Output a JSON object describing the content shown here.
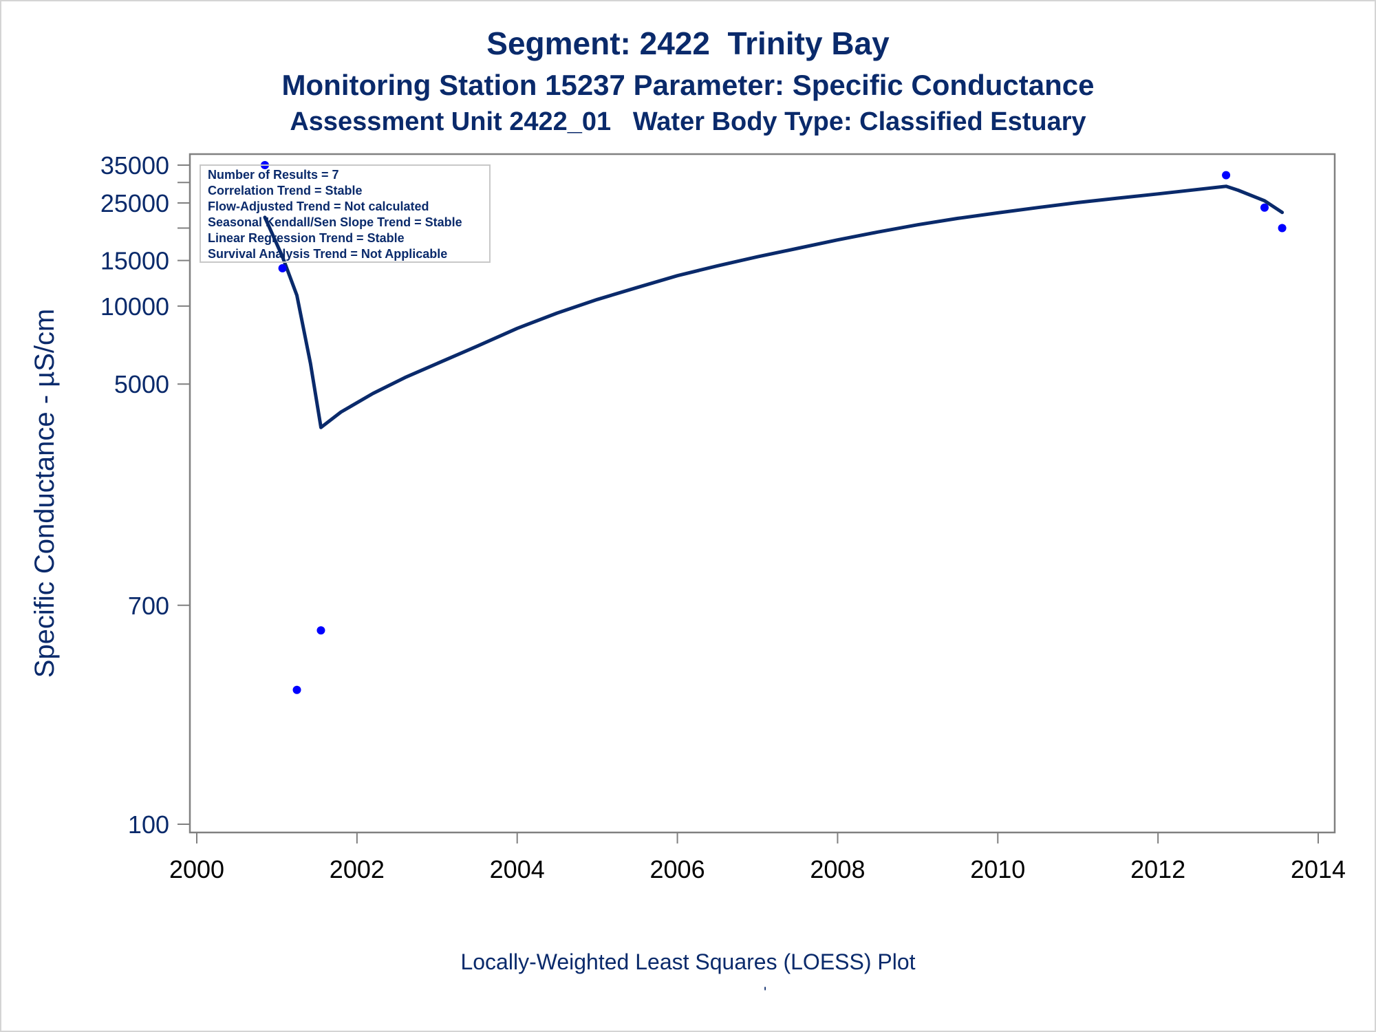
{
  "chart_data": {
    "type": "scatter",
    "title": "Segment: 2422  Trinity Bay",
    "subtitle": "Monitoring Station 15237 Parameter: Specific Conductance",
    "subtitle2": "Assessment Unit 2422_01   Water Body Type: Classified Estuary",
    "xlabel": "",
    "ylabel": "Specific Conductance -  µS/cm",
    "footnote": "Locally-Weighted Least Squares (LOESS) Plot",
    "footnote_mark": "'",
    "y_scale": "log",
    "xlim": [
      1999.95,
      2014.3
    ],
    "ylim": [
      100,
      35000
    ],
    "x_ticks": [
      2000,
      2002,
      2004,
      2006,
      2008,
      2010,
      2012,
      2014
    ],
    "x_tick_labels": [
      "2000",
      "2002",
      "2004",
      "2006",
      "2008",
      "2010",
      "2012",
      "2014"
    ],
    "y_ticks_labeled": [
      100,
      700,
      5000,
      10000,
      15000,
      25000,
      35000
    ],
    "y_tick_labels": [
      "100",
      "700",
      "5000",
      "10000",
      "15000",
      "25000",
      "35000"
    ],
    "y_ticks_minor": [
      20000,
      30000
    ],
    "legend_placement": "top-left",
    "annotations": [
      "Number of Results = 7",
      "Correlation Trend = Stable",
      "Flow-Adjusted Trend = Not calculated",
      "Seasonal Kendall/Sen Slope Trend = Stable",
      "Linear Regression Trend = Stable",
      "Survival Analysis Trend = Not Applicable"
    ],
    "series": [
      {
        "kind": "points",
        "color": "#0000ff",
        "x": [
          2000.85,
          2001.07,
          2001.25,
          2001.55,
          2012.85,
          2013.33,
          2013.55
        ],
        "y": [
          35000,
          14000,
          330,
          560,
          32000,
          24000,
          20000
        ]
      },
      {
        "kind": "loess-line",
        "color": "#0a2a6b",
        "x": [
          2000.85,
          2001.07,
          2001.25,
          2001.42,
          2001.55,
          2001.8,
          2002.2,
          2002.6,
          2003.0,
          2003.5,
          2004.0,
          2004.5,
          2005.0,
          2005.5,
          2006.0,
          2006.5,
          2007.0,
          2007.5,
          2008.0,
          2008.5,
          2009.0,
          2009.5,
          2010.0,
          2010.5,
          2011.0,
          2011.5,
          2012.0,
          2012.5,
          2012.85,
          2013.0,
          2013.33,
          2013.55
        ],
        "y": [
          22000,
          15500,
          11000,
          6000,
          3400,
          3900,
          4600,
          5300,
          6000,
          7000,
          8200,
          9400,
          10600,
          11800,
          13100,
          14300,
          15500,
          16700,
          18000,
          19300,
          20600,
          21800,
          22900,
          24000,
          25100,
          26100,
          27100,
          28200,
          29000,
          28000,
          25500,
          23000
        ]
      }
    ]
  },
  "colors": {
    "title": "#0a2a6b",
    "axis": "#808080",
    "points": "#0000ff",
    "line": "#0a2a6b",
    "ticklabel_y": "#0a2a6b",
    "ticklabel_x": "#000000"
  }
}
